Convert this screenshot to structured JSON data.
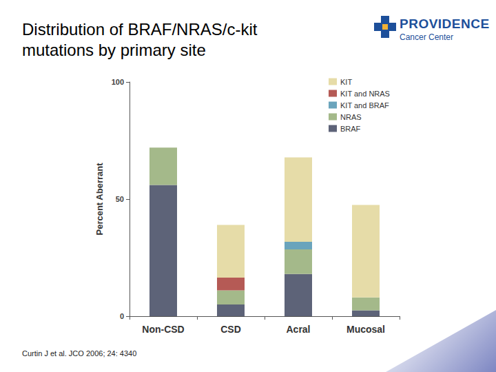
{
  "chart_data": {
    "type": "bar",
    "stacked": true,
    "title": "Distribution of BRAF/NRAS/c-kit\nmutations by primary site",
    "y_label": "Percent Aberrant",
    "annotations": [
      "Curtin J et al. JCO 2006; 24: 4340"
    ],
    "categories": [
      "Non-CSD",
      "CSD",
      "Acral",
      "Mucosal"
    ],
    "series": [
      {
        "name": "BRAF",
        "color": "#5d6378",
        "values": [
          56,
          5,
          18,
          2.5
        ]
      },
      {
        "name": "NRAS",
        "color": "#a4b98a",
        "values": [
          16,
          6,
          10.5,
          5.5
        ]
      },
      {
        "name": "KIT and BRAF",
        "color": "#6aa4bc",
        "values": [
          0,
          0,
          3.3,
          0
        ]
      },
      {
        "name": "KIT and NRAS",
        "color": "#b55a55",
        "values": [
          0,
          5.5,
          0,
          0
        ]
      },
      {
        "name": "KIT",
        "color": "#e6dca8",
        "values": [
          0,
          22.5,
          36,
          39.5
        ]
      }
    ],
    "ylim": [
      0,
      100
    ],
    "yticks": [
      0,
      50,
      100
    ],
    "grid": false,
    "legend": "upper right",
    "data_labels": false
  },
  "logo": {
    "name": "PROVIDENCE",
    "subtitle": "Cancer Center"
  }
}
